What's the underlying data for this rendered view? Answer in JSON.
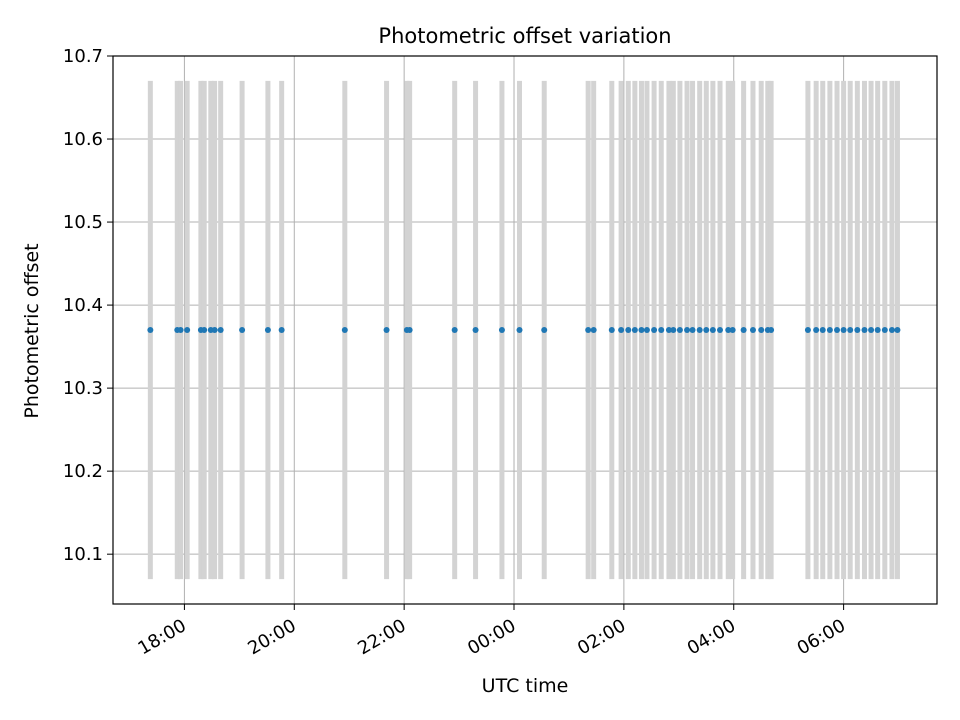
{
  "chart_data": {
    "type": "scatter",
    "title": "Photometric offset variation",
    "xlabel": "UTC time",
    "ylabel": "Photometric offset",
    "x_unit": "UTC hour (24h clock, continuing past midnight)",
    "xlim": [
      16.7,
      31.7
    ],
    "ylim": [
      10.04,
      10.7
    ],
    "x_tick_values": [
      18,
      20,
      22,
      24,
      26,
      28,
      30
    ],
    "x_tick_labels": [
      "18:00",
      "20:00",
      "22:00",
      "00:00",
      "02:00",
      "04:00",
      "06:00"
    ],
    "y_ticks": [
      10.1,
      10.2,
      10.3,
      10.4,
      10.5,
      10.6,
      10.7
    ],
    "y_tick_labels": [
      "10.1",
      "10.2",
      "10.3",
      "10.4",
      "10.5",
      "10.6",
      "10.7"
    ],
    "grid": true,
    "band_range": [
      10.07,
      10.67
    ],
    "series": [
      {
        "color": "#1f77b4",
        "points": [
          {
            "t": 17.38,
            "y": 10.37
          },
          {
            "t": 17.87,
            "y": 10.37
          },
          {
            "t": 17.93,
            "y": 10.37
          },
          {
            "t": 18.05,
            "y": 10.37
          },
          {
            "t": 18.3,
            "y": 10.37
          },
          {
            "t": 18.36,
            "y": 10.37
          },
          {
            "t": 18.48,
            "y": 10.37
          },
          {
            "t": 18.55,
            "y": 10.37
          },
          {
            "t": 18.66,
            "y": 10.37
          },
          {
            "t": 19.05,
            "y": 10.37
          },
          {
            "t": 19.52,
            "y": 10.37
          },
          {
            "t": 19.77,
            "y": 10.37
          },
          {
            "t": 20.92,
            "y": 10.37
          },
          {
            "t": 21.68,
            "y": 10.37
          },
          {
            "t": 22.05,
            "y": 10.37
          },
          {
            "t": 22.1,
            "y": 10.37
          },
          {
            "t": 22.92,
            "y": 10.37
          },
          {
            "t": 23.3,
            "y": 10.37
          },
          {
            "t": 23.78,
            "y": 10.37
          },
          {
            "t": 24.1,
            "y": 10.37
          },
          {
            "t": 24.55,
            "y": 10.37
          },
          {
            "t": 25.35,
            "y": 10.37
          },
          {
            "t": 25.45,
            "y": 10.37
          },
          {
            "t": 25.78,
            "y": 10.37
          },
          {
            "t": 25.95,
            "y": 10.37
          },
          {
            "t": 26.08,
            "y": 10.37
          },
          {
            "t": 26.2,
            "y": 10.37
          },
          {
            "t": 26.32,
            "y": 10.37
          },
          {
            "t": 26.42,
            "y": 10.37
          },
          {
            "t": 26.55,
            "y": 10.37
          },
          {
            "t": 26.68,
            "y": 10.37
          },
          {
            "t": 26.82,
            "y": 10.37
          },
          {
            "t": 26.9,
            "y": 10.37
          },
          {
            "t": 27.02,
            "y": 10.37
          },
          {
            "t": 27.15,
            "y": 10.37
          },
          {
            "t": 27.25,
            "y": 10.37
          },
          {
            "t": 27.38,
            "y": 10.37
          },
          {
            "t": 27.5,
            "y": 10.37
          },
          {
            "t": 27.62,
            "y": 10.37
          },
          {
            "t": 27.75,
            "y": 10.37
          },
          {
            "t": 27.9,
            "y": 10.37
          },
          {
            "t": 27.98,
            "y": 10.37
          },
          {
            "t": 28.18,
            "y": 10.37
          },
          {
            "t": 28.35,
            "y": 10.37
          },
          {
            "t": 28.5,
            "y": 10.37
          },
          {
            "t": 28.62,
            "y": 10.37
          },
          {
            "t": 28.68,
            "y": 10.37
          },
          {
            "t": 29.35,
            "y": 10.37
          },
          {
            "t": 29.5,
            "y": 10.37
          },
          {
            "t": 29.62,
            "y": 10.37
          },
          {
            "t": 29.75,
            "y": 10.37
          },
          {
            "t": 29.88,
            "y": 10.37
          },
          {
            "t": 30.0,
            "y": 10.37
          },
          {
            "t": 30.12,
            "y": 10.37
          },
          {
            "t": 30.25,
            "y": 10.37
          },
          {
            "t": 30.38,
            "y": 10.37
          },
          {
            "t": 30.5,
            "y": 10.37
          },
          {
            "t": 30.62,
            "y": 10.37
          },
          {
            "t": 30.75,
            "y": 10.37
          },
          {
            "t": 30.88,
            "y": 10.37
          },
          {
            "t": 30.98,
            "y": 10.37
          }
        ]
      }
    ]
  }
}
